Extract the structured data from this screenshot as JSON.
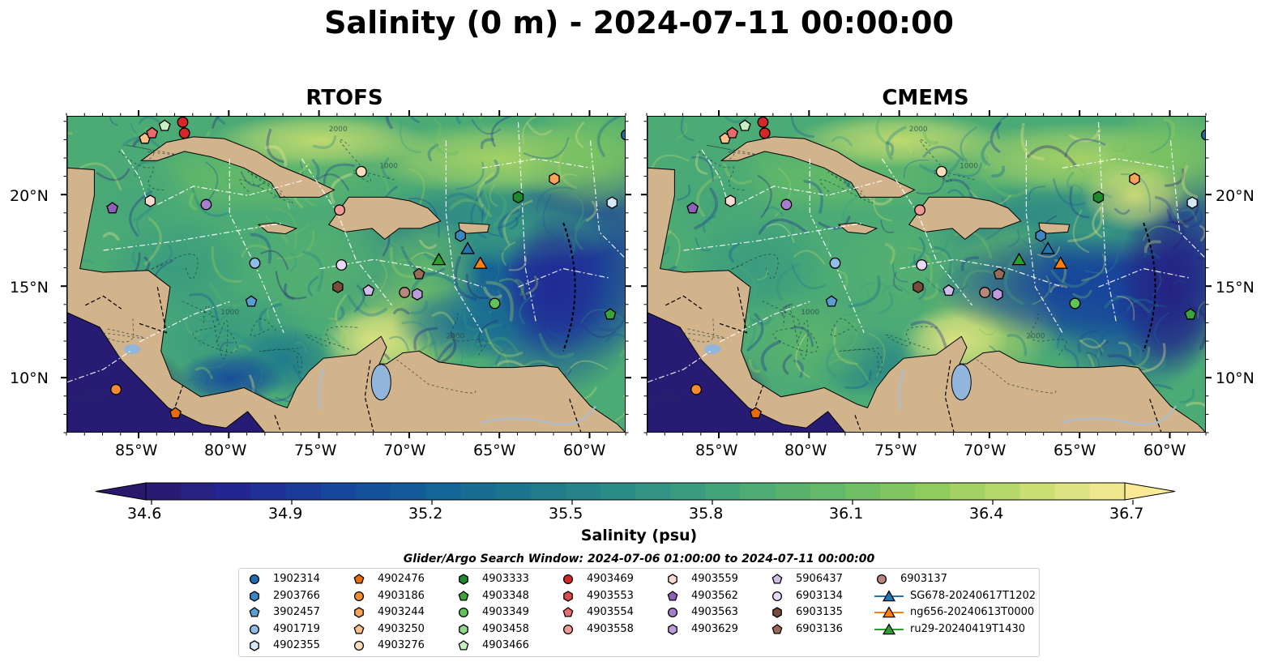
{
  "title": "Salinity (0 m) - 2024-07-11 00:00:00",
  "panels": [
    {
      "title": "RTOFS"
    },
    {
      "title": "CMEMS"
    }
  ],
  "axes": {
    "lon_ticks": [
      "85°W",
      "80°W",
      "75°W",
      "70°W",
      "65°W",
      "60°W"
    ],
    "lat_ticks": [
      "20°N",
      "15°N",
      "10°N"
    ],
    "lon_range": [
      -89,
      -58
    ],
    "lat_range": [
      7,
      24.3
    ]
  },
  "colorbar": {
    "label": "Salinity (psu)",
    "ticks": [
      "34.6",
      "34.9",
      "35.2",
      "35.5",
      "35.8",
      "36.1",
      "36.4",
      "36.7"
    ],
    "range": [
      34.6,
      36.7
    ],
    "extend": "both",
    "colormap": "haline"
  },
  "search_window": "Glider/Argo Search Window: 2024-07-06 01:00:00 to 2024-07-11 00:00:00",
  "legend": [
    {
      "label": "1902314",
      "marker": "circle",
      "color": "#1f6eb0"
    },
    {
      "label": "2903766",
      "marker": "hexagon",
      "color": "#3a86c2"
    },
    {
      "label": "3902457",
      "marker": "pentagon",
      "color": "#5a9fd4"
    },
    {
      "label": "4901719",
      "marker": "circle",
      "color": "#8ebde8"
    },
    {
      "label": "4902355",
      "marker": "hexagon",
      "color": "#d6e8f8"
    },
    {
      "label": "4902476",
      "marker": "pentagon",
      "color": "#e66b0b"
    },
    {
      "label": "4903186",
      "marker": "circle",
      "color": "#f58c33"
    },
    {
      "label": "4903244",
      "marker": "hexagon",
      "color": "#f9a35a"
    },
    {
      "label": "4903250",
      "marker": "pentagon",
      "color": "#fbc08a"
    },
    {
      "label": "4903276",
      "marker": "circle",
      "color": "#fddcbb"
    },
    {
      "label": "4903333",
      "marker": "hexagon",
      "color": "#1e8a2e"
    },
    {
      "label": "4903348",
      "marker": "pentagon",
      "color": "#3aa33c"
    },
    {
      "label": "4903349",
      "marker": "circle",
      "color": "#5ec45a"
    },
    {
      "label": "4903458",
      "marker": "hexagon",
      "color": "#8fd98a"
    },
    {
      "label": "4903466",
      "marker": "pentagon",
      "color": "#c9f0c3"
    },
    {
      "label": "4903469",
      "marker": "circle",
      "color": "#d62728"
    },
    {
      "label": "4903553",
      "marker": "hexagon",
      "color": "#e04a4a"
    },
    {
      "label": "4903554",
      "marker": "pentagon",
      "color": "#ea6b6b"
    },
    {
      "label": "4903558",
      "marker": "circle",
      "color": "#f29a96"
    },
    {
      "label": "4903559",
      "marker": "hexagon",
      "color": "#fbd9d3"
    },
    {
      "label": "4903562",
      "marker": "pentagon",
      "color": "#8e60b8"
    },
    {
      "label": "4903563",
      "marker": "circle",
      "color": "#a67fcc"
    },
    {
      "label": "4903629",
      "marker": "hexagon",
      "color": "#bc9cdc"
    },
    {
      "label": "5906437",
      "marker": "pentagon",
      "color": "#d1bdea"
    },
    {
      "label": "6903134",
      "marker": "circle",
      "color": "#ead9f6"
    },
    {
      "label": "6903135",
      "marker": "hexagon",
      "color": "#7a4a3a"
    },
    {
      "label": "6903136",
      "marker": "pentagon",
      "color": "#9a6a58"
    },
    {
      "label": "6903137",
      "marker": "circle",
      "color": "#b9877a"
    },
    {
      "label": "SG678-20240617T1202",
      "marker": "triangle",
      "color": "#1f77b4",
      "line": true
    },
    {
      "label": "ng656-20240613T0000",
      "marker": "triangle",
      "color": "#ff7f0e",
      "line": true
    },
    {
      "label": "ru29-20240419T1430",
      "marker": "triangle",
      "color": "#2ca02c",
      "line": true
    }
  ],
  "floats": [
    {
      "id": "1902314",
      "lon": -58.0,
      "lat": 23.3
    },
    {
      "id": "2903766",
      "lon": -67.2,
      "lat": 17.8
    },
    {
      "id": "3902457",
      "lon": -78.8,
      "lat": 14.2
    },
    {
      "id": "4901719",
      "lon": -78.6,
      "lat": 16.3
    },
    {
      "id": "4902355",
      "lon": -58.8,
      "lat": 19.6
    },
    {
      "id": "4902476",
      "lon": -83.0,
      "lat": 8.1
    },
    {
      "id": "4903186",
      "lon": -86.3,
      "lat": 9.4
    },
    {
      "id": "4903244",
      "lon": -62.0,
      "lat": 20.9
    },
    {
      "id": "4903250",
      "lon": -84.7,
      "lat": 23.1
    },
    {
      "id": "4903276",
      "lon": -72.7,
      "lat": 21.3
    },
    {
      "id": "4903333",
      "lon": -64.0,
      "lat": 19.9
    },
    {
      "id": "4903348",
      "lon": -58.9,
      "lat": 13.5
    },
    {
      "id": "4903349",
      "lon": -65.3,
      "lat": 14.1
    },
    {
      "id": "4903466",
      "lon": -83.6,
      "lat": 23.8
    },
    {
      "id": "4903469",
      "lon": -82.5,
      "lat": 23.4
    },
    {
      "id": "4903469",
      "lon": -82.6,
      "lat": 24.0
    },
    {
      "id": "4903554",
      "lon": -84.3,
      "lat": 23.4
    },
    {
      "id": "4903558",
      "lon": -73.9,
      "lat": 19.2
    },
    {
      "id": "4903559",
      "lon": -84.4,
      "lat": 19.7
    },
    {
      "id": "4903562",
      "lon": -86.5,
      "lat": 19.3
    },
    {
      "id": "4903563",
      "lon": -81.3,
      "lat": 19.5
    },
    {
      "id": "4903629",
      "lon": -69.6,
      "lat": 14.6
    },
    {
      "id": "5906437",
      "lon": -72.3,
      "lat": 14.8
    },
    {
      "id": "6903134",
      "lon": -73.8,
      "lat": 16.2
    },
    {
      "id": "6903135",
      "lon": -74.0,
      "lat": 15.0
    },
    {
      "id": "6903136",
      "lon": -69.5,
      "lat": 15.7
    },
    {
      "id": "6903137",
      "lon": -70.3,
      "lat": 14.7
    }
  ],
  "gliders": [
    {
      "id": "SG678-20240617T1202",
      "lon": -66.8,
      "lat": 17.1
    },
    {
      "id": "ng656-20240613T0000",
      "lon": -66.1,
      "lat": 16.3
    },
    {
      "id": "ru29-20240419T1430",
      "lon": -68.4,
      "lat": 16.5
    }
  ],
  "contour_labels": [
    "1000",
    "2000"
  ],
  "colors": {
    "land": "#d2b48c",
    "lake": "#92b5dc",
    "river": "#a7bed6",
    "boundary_white": "#ffffff"
  }
}
